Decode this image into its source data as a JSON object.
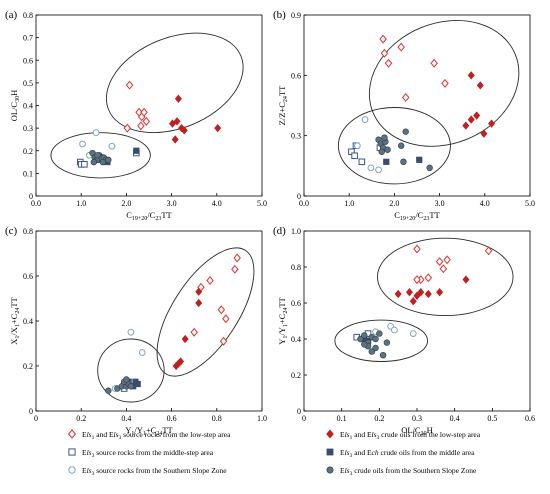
{
  "chart_data": [
    {
      "type": "scatter",
      "panel_label": "(a)",
      "xlabel": "C19+20/C23TT",
      "ylabel": "OL/C30H",
      "xlabel_main": "C",
      "xlabel_sub1": "19+20",
      "xlabel_mid": "/C",
      "xlabel_sub2": "23",
      "xlabel_tail": "TT",
      "ylabel_main": "OL/C",
      "ylabel_sub1": "30",
      "ylabel_tail": "H",
      "xlim": [
        0,
        5
      ],
      "ylim": [
        0,
        0.8
      ],
      "xticks": [
        "0.0",
        "1.0",
        "2.0",
        "3.0",
        "4.0",
        "5.0"
      ],
      "yticks": [
        "0",
        "0.1",
        "0.2",
        "0.3",
        "0.4",
        "0.5",
        "0.6",
        "0.7",
        "0.8"
      ],
      "series": [
        {
          "key": "ls_rock",
          "points": [
            [
              2.07,
              0.49
            ],
            [
              2.02,
              0.3
            ],
            [
              2.28,
              0.37
            ],
            [
              2.34,
              0.35
            ],
            [
              2.39,
              0.37
            ],
            [
              2.44,
              0.33
            ],
            [
              2.32,
              0.31
            ]
          ]
        },
        {
          "key": "ls_oil",
          "points": [
            [
              3.15,
              0.43
            ],
            [
              3.02,
              0.32
            ],
            [
              3.12,
              0.33
            ],
            [
              3.22,
              0.3
            ],
            [
              3.28,
              0.29
            ],
            [
              3.08,
              0.25
            ],
            [
              4.02,
              0.3
            ]
          ]
        },
        {
          "key": "ms_rock",
          "points": [
            [
              0.98,
              0.15
            ],
            [
              1.0,
              0.14
            ],
            [
              1.07,
              0.14
            ],
            [
              1.42,
              0.17
            ],
            [
              1.5,
              0.16
            ],
            [
              2.22,
              0.19
            ]
          ]
        },
        {
          "key": "ms_oil",
          "points": [
            [
              2.22,
              0.2
            ],
            [
              1.4,
              0.16
            ],
            [
              1.58,
              0.15
            ]
          ]
        },
        {
          "key": "ss_rock",
          "points": [
            [
              1.03,
              0.23
            ],
            [
              1.33,
              0.28
            ],
            [
              1.68,
              0.22
            ],
            [
              1.18,
              0.18
            ]
          ]
        },
        {
          "key": "ss_oil",
          "points": [
            [
              1.25,
              0.19
            ],
            [
              1.3,
              0.17
            ],
            [
              1.35,
              0.16
            ],
            [
              1.4,
              0.18
            ],
            [
              1.45,
              0.17
            ],
            [
              1.5,
              0.17
            ],
            [
              1.55,
              0.16
            ],
            [
              1.6,
              0.16
            ],
            [
              1.28,
              0.15
            ],
            [
              1.48,
              0.15
            ],
            [
              1.36,
              0.18
            ]
          ]
        }
      ],
      "ellipses": [
        {
          "cx": 3.07,
          "cy": 0.5,
          "rx": 1.58,
          "ry": 0.2,
          "angle": -22
        },
        {
          "cx": 1.43,
          "cy": 0.18,
          "rx": 1.1,
          "ry": 0.1,
          "angle": 0
        }
      ]
    },
    {
      "type": "scatter",
      "panel_label": "(b)",
      "xlabel": "C19+20/C23TT",
      "ylabel": "Z/Z+C24TT",
      "xlabel_main": "C",
      "xlabel_sub1": "19+20",
      "xlabel_mid": "/C",
      "xlabel_sub2": "23",
      "xlabel_tail": "TT",
      "ylabel_main": "Z/Z+C",
      "ylabel_sub1": "24",
      "ylabel_tail": "TT",
      "xlim": [
        0,
        5
      ],
      "ylim": [
        0,
        0.9
      ],
      "xticks": [
        "0.0",
        "1.0",
        "2.0",
        "3.0",
        "4.0",
        "5.0"
      ],
      "yticks": [
        "0",
        "0.3",
        "0.6",
        "0.9"
      ],
      "series": [
        {
          "key": "ls_rock",
          "points": [
            [
              1.75,
              0.78
            ],
            [
              1.78,
              0.71
            ],
            [
              1.87,
              0.66
            ],
            [
              2.15,
              0.74
            ],
            [
              2.25,
              0.49
            ],
            [
              2.88,
              0.66
            ],
            [
              3.12,
              0.56
            ]
          ]
        },
        {
          "key": "ls_oil",
          "points": [
            [
              3.7,
              0.6
            ],
            [
              3.9,
              0.55
            ],
            [
              3.7,
              0.38
            ],
            [
              3.58,
              0.35
            ],
            [
              3.82,
              0.4
            ],
            [
              3.98,
              0.31
            ],
            [
              4.15,
              0.36
            ]
          ]
        },
        {
          "key": "ms_rock",
          "points": [
            [
              1.05,
              0.22
            ],
            [
              1.12,
              0.2
            ],
            [
              1.28,
              0.17
            ],
            [
              1.68,
              0.24
            ],
            [
              1.15,
              0.25
            ]
          ]
        },
        {
          "key": "ms_oil",
          "points": [
            [
              1.82,
              0.17
            ],
            [
              2.55,
              0.18
            ]
          ]
        },
        {
          "key": "ss_rock",
          "points": [
            [
              1.35,
              0.38
            ],
            [
              1.48,
              0.14
            ],
            [
              1.65,
              0.13
            ],
            [
              1.18,
              0.25
            ]
          ]
        },
        {
          "key": "ss_oil",
          "points": [
            [
              1.65,
              0.28
            ],
            [
              1.7,
              0.26
            ],
            [
              1.75,
              0.24
            ],
            [
              1.8,
              0.27
            ],
            [
              1.72,
              0.22
            ],
            [
              1.78,
              0.29
            ],
            [
              1.85,
              0.23
            ],
            [
              2.15,
              0.25
            ],
            [
              2.25,
              0.32
            ],
            [
              2.78,
              0.14
            ],
            [
              2.2,
              0.17
            ]
          ]
        }
      ],
      "ellipses": [
        {
          "cx": 3.1,
          "cy": 0.56,
          "rx": 1.7,
          "ry": 0.3,
          "angle": -22
        },
        {
          "cx": 2.0,
          "cy": 0.25,
          "rx": 1.24,
          "ry": 0.19,
          "angle": 0
        }
      ]
    },
    {
      "type": "scatter",
      "panel_label": "(c)",
      "xlabel": "Y1/Y1+C24TT",
      "ylabel": "X1/X1+C24TT",
      "xlabel_main": "Y",
      "xlabel_sub1": "1",
      "xlabel_mid": "/Y",
      "xlabel_sub2": "1",
      "xlabel_tail": "+C",
      "xlabel_sub3": "24",
      "xlabel_tail2": "TT",
      "ylabel_main": "X",
      "ylabel_sub1": "1",
      "ylabel_mid": "/X",
      "ylabel_sub2": "1",
      "ylabel_tail": "+C",
      "ylabel_sub3": "24",
      "ylabel_tail2": "TT",
      "xlim": [
        0,
        1.0
      ],
      "ylim": [
        0,
        0.8
      ],
      "xticks": [
        "0",
        "0.2",
        "0.4",
        "0.6",
        "0.8",
        "1.0"
      ],
      "yticks": [
        "0",
        "0.2",
        "0.4",
        "0.6",
        "0.8"
      ],
      "series": [
        {
          "key": "ls_rock",
          "points": [
            [
              0.89,
              0.68
            ],
            [
              0.88,
              0.63
            ],
            [
              0.77,
              0.58
            ],
            [
              0.82,
              0.45
            ],
            [
              0.84,
              0.41
            ],
            [
              0.7,
              0.35
            ],
            [
              0.83,
              0.31
            ],
            [
              0.73,
              0.55
            ]
          ]
        },
        {
          "key": "ls_oil",
          "points": [
            [
              0.72,
              0.53
            ],
            [
              0.72,
              0.48
            ],
            [
              0.66,
              0.32
            ],
            [
              0.64,
              0.22
            ],
            [
              0.63,
              0.21
            ],
            [
              0.62,
              0.2
            ]
          ]
        },
        {
          "key": "ms_rock",
          "points": [
            [
              0.39,
              0.1
            ],
            [
              0.4,
              0.12
            ]
          ]
        },
        {
          "key": "ms_oil",
          "points": [
            [
              0.41,
              0.13
            ],
            [
              0.43,
              0.11
            ],
            [
              0.45,
              0.12
            ],
            [
              0.44,
              0.13
            ]
          ]
        },
        {
          "key": "ss_rock",
          "points": [
            [
              0.42,
              0.35
            ],
            [
              0.47,
              0.26
            ],
            [
              0.35,
              0.1
            ]
          ]
        },
        {
          "key": "ss_oil",
          "points": [
            [
              0.32,
              0.09
            ],
            [
              0.36,
              0.1
            ],
            [
              0.38,
              0.11
            ],
            [
              0.4,
              0.11
            ],
            [
              0.41,
              0.12
            ],
            [
              0.42,
              0.11
            ],
            [
              0.39,
              0.13
            ],
            [
              0.4,
              0.14
            ]
          ]
        }
      ],
      "ellipses": [
        {
          "cx": 0.75,
          "cy": 0.44,
          "rx": 0.325,
          "ry": 0.145,
          "angle": -57
        },
        {
          "cx": 0.42,
          "cy": 0.18,
          "rx": 0.147,
          "ry": 0.14,
          "angle": 0
        }
      ]
    },
    {
      "type": "scatter",
      "panel_label": "(d)",
      "xlabel": "OL/C30H",
      "ylabel": "Y1/Y1+C24TT",
      "xlabel_main": "OL/C",
      "xlabel_sub1": "30",
      "xlabel_tail": "H",
      "ylabel_main": "Y",
      "ylabel_sub1": "1",
      "ylabel_mid": "/Y",
      "ylabel_sub2": "1",
      "ylabel_tail": "+C",
      "ylabel_sub3": "24",
      "ylabel_tail2": "TT",
      "xlim": [
        0,
        0.6
      ],
      "ylim": [
        0,
        1.0
      ],
      "xticks": [
        "0",
        "0.1",
        "0.2",
        "0.3",
        "0.4",
        "0.5",
        "0.6"
      ],
      "yticks": [
        "0",
        "0.2",
        "0.4",
        "0.6",
        "0.8",
        "1.0"
      ],
      "series": [
        {
          "key": "ls_rock",
          "points": [
            [
              0.3,
              0.9
            ],
            [
              0.36,
              0.83
            ],
            [
              0.38,
              0.84
            ],
            [
              0.37,
              0.79
            ],
            [
              0.33,
              0.74
            ],
            [
              0.31,
              0.73
            ],
            [
              0.49,
              0.89
            ],
            [
              0.3,
              0.73
            ]
          ]
        },
        {
          "key": "ls_oil",
          "points": [
            [
              0.25,
              0.65
            ],
            [
              0.28,
              0.66
            ],
            [
              0.29,
              0.61
            ],
            [
              0.3,
              0.64
            ],
            [
              0.31,
              0.66
            ],
            [
              0.33,
              0.65
            ],
            [
              0.36,
              0.66
            ],
            [
              0.43,
              0.73
            ]
          ]
        },
        {
          "key": "ms_rock",
          "points": [
            [
              0.14,
              0.41
            ],
            [
              0.17,
              0.43
            ]
          ]
        },
        {
          "key": "ms_oil",
          "points": [
            [
              0.16,
              0.4
            ],
            [
              0.17,
              0.39
            ]
          ]
        },
        {
          "key": "ss_rock",
          "points": [
            [
              0.23,
              0.47
            ],
            [
              0.29,
              0.43
            ],
            [
              0.24,
              0.45
            ],
            [
              0.19,
              0.44
            ]
          ]
        },
        {
          "key": "ss_oil",
          "points": [
            [
              0.15,
              0.4
            ],
            [
              0.16,
              0.42
            ],
            [
              0.17,
              0.38
            ],
            [
              0.18,
              0.41
            ],
            [
              0.19,
              0.4
            ],
            [
              0.2,
              0.43
            ],
            [
              0.17,
              0.36
            ],
            [
              0.19,
              0.35
            ],
            [
              0.22,
              0.38
            ],
            [
              0.21,
              0.31
            ],
            [
              0.18,
              0.33
            ],
            [
              0.16,
              0.37
            ]
          ]
        }
      ],
      "ellipses": [
        {
          "cx": 0.375,
          "cy": 0.745,
          "rx": 0.18,
          "ry": 0.215,
          "angle": 0
        },
        {
          "cx": 0.205,
          "cy": 0.39,
          "rx": 0.123,
          "ry": 0.115,
          "angle": 0
        }
      ]
    }
  ],
  "legend": [
    {
      "key": "ls_rock",
      "marker": "diamond-open",
      "color": "#e0322f",
      "label": "Els1 and Els3 source rocks from the low-step area",
      "parts": [
        "E",
        "ls",
        "1",
        " and E",
        "ls",
        "3",
        " source rocks from the low-step area"
      ]
    },
    {
      "key": "ls_oil",
      "marker": "diamond-filled",
      "color": "#c0201f",
      "label": "Els1 and Els3 crude oils from the low-step area",
      "parts": [
        "E",
        "ls",
        "1",
        " and E",
        "ls",
        "3",
        " crude oils from the low-step area"
      ]
    },
    {
      "key": "ms_rock",
      "marker": "square-open",
      "color": "#3b5683",
      "label": "Els3 source rocks from the middle-step area",
      "parts": [
        "E",
        "ls",
        "3",
        " source rocks from the middle-step area"
      ]
    },
    {
      "key": "ms_oil",
      "marker": "square-filled",
      "color": "#3a4d6e",
      "label": "Els3 and Ech crude oils from the middle area",
      "parts": [
        "E",
        "ls",
        "3",
        " and E",
        "ch",
        "",
        " crude oils from the middle area"
      ]
    },
    {
      "key": "ss_rock",
      "marker": "circle-open",
      "color": "#7fa6ba",
      "label": "Els3 source rocks from the Southern Slope Zone",
      "parts": [
        "E",
        "ls",
        "3",
        " source rocks from the Southern Slope Zone"
      ]
    },
    {
      "key": "ss_oil",
      "marker": "circle-filled",
      "color": "#5b7280",
      "label": "Els3 crude oils from the Southern Slope Zone",
      "parts": [
        "E",
        "ls",
        "3",
        " crude oils from the Southern Slope Zone"
      ]
    }
  ]
}
